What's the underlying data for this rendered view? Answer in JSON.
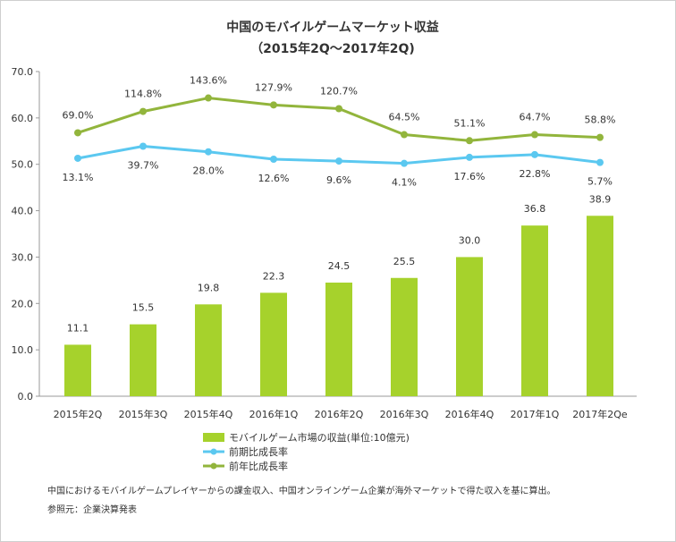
{
  "chart_data": {
    "type": "bar",
    "title": "中国のモバイルゲームマーケット収益",
    "subtitle": "（2015年2Q～2017年2Q)",
    "categories": [
      "2015年2Q",
      "2015年3Q",
      "2015年4Q",
      "2016年1Q",
      "2016年2Q",
      "2016年3Q",
      "2016年4Q",
      "2017年1Q",
      "2017年2Qe"
    ],
    "ylim": [
      0,
      70
    ],
    "yticks": [
      "0.0",
      "10.0",
      "20.0",
      "30.0",
      "40.0",
      "50.0",
      "60.0",
      "70.0"
    ],
    "grid": false,
    "bars": {
      "name": "モバイルゲーム市場の収益(単位:10億元)",
      "color": "#a6d22c",
      "values": [
        11.1,
        15.5,
        19.8,
        22.3,
        24.5,
        25.5,
        30.0,
        36.8,
        38.9
      ],
      "labels": [
        "11.1",
        "15.5",
        "19.8",
        "22.3",
        "24.5",
        "25.5",
        "30.0",
        "36.8",
        "38.9"
      ]
    },
    "lines": [
      {
        "name": "前期比成長率",
        "color": "#5bc8f0",
        "position_on_axis": [
          51.3,
          53.9,
          52.7,
          51.1,
          50.7,
          50.2,
          51.5,
          52.1,
          50.4
        ],
        "labels": [
          "13.1%",
          "39.7%",
          "28.0%",
          "12.6%",
          "9.6%",
          "4.1%",
          "17.6%",
          "22.8%",
          "5.7%"
        ]
      },
      {
        "name": "前年比成長率",
        "color": "#92b53c",
        "position_on_axis": [
          56.8,
          61.4,
          64.3,
          62.8,
          62.0,
          56.4,
          55.1,
          56.4,
          55.8
        ],
        "labels": [
          "69.0%",
          "114.8%",
          "143.6%",
          "127.9%",
          "120.7%",
          "64.5%",
          "51.1%",
          "64.7%",
          "58.8%"
        ]
      }
    ],
    "legend_position": "bottom"
  },
  "footnote": "中国におけるモバイルゲームプレイヤーからの課金収入、中国オンラインゲーム企業が海外マーケットで得た収入を基に算出。",
  "source": "参照元：企業決算発表"
}
